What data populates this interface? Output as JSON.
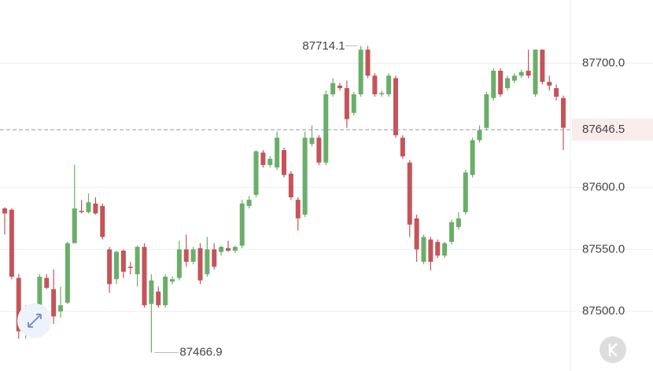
{
  "chart_data": {
    "type": "candlestick",
    "up_color": "#6aae6a",
    "down_color": "#c5545a",
    "open": [
      87583,
      87582,
      87527,
      87485,
      87496,
      87505,
      87527,
      87518,
      87500,
      87507,
      87555,
      87581,
      87580,
      87587,
      87585,
      87550,
      87526,
      87549,
      87536,
      87530,
      87552,
      87506,
      87516,
      87505,
      87524,
      87527,
      87550,
      87540,
      87551,
      87530,
      87550,
      87548,
      87551,
      87549,
      87553,
      87585,
      87594,
      87628,
      87618,
      87616,
      87630,
      87611,
      87590,
      87578,
      87635,
      87640,
      87620,
      87675,
      87682,
      87680,
      87660,
      87675,
      87711,
      87690,
      87675,
      87675,
      87688,
      87640,
      87620,
      87575,
      87540,
      87558,
      87556,
      87545,
      87556,
      87568,
      87580,
      87610,
      87638,
      87648,
      87672,
      87694,
      87680,
      87686,
      87690,
      87694,
      87675,
      87711,
      87685,
      87680,
      87672
    ],
    "high": [
      87584,
      87583,
      87530,
      87505,
      87505,
      87530,
      87530,
      87534,
      87520,
      87556,
      87618,
      87590,
      87595,
      87592,
      87587,
      87552,
      87549,
      87550,
      87540,
      87553,
      87555,
      87530,
      87520,
      87530,
      87528,
      87557,
      87562,
      87552,
      87555,
      87560,
      87555,
      87553,
      87557,
      87553,
      87590,
      87593,
      87630,
      87630,
      87625,
      87645,
      87632,
      87613,
      87592,
      87645,
      87650,
      87642,
      87678,
      87688,
      87684,
      87686,
      87677,
      87714,
      87714,
      87692,
      87678,
      87692,
      87690,
      87642,
      87622,
      87578,
      87562,
      87560,
      87558,
      87556,
      87574,
      87580,
      87614,
      87640,
      87650,
      87677,
      87696,
      87696,
      87690,
      87692,
      87695,
      87711,
      87711,
      87711,
      87690,
      87683,
      87674
    ],
    "low": [
      87562,
      87526,
      87478,
      87478,
      87490,
      87500,
      87518,
      87490,
      87495,
      87506,
      87555,
      87579,
      87579,
      87578,
      87558,
      87515,
      87522,
      87527,
      87530,
      87520,
      87503,
      87466.9,
      87503,
      87503,
      87522,
      87525,
      87536,
      87538,
      87522,
      87528,
      87534,
      87545,
      87548,
      87547,
      87551,
      87583,
      87592,
      87616,
      87616,
      87614,
      87608,
      87590,
      87565,
      87576,
      87633,
      87618,
      87618,
      87673,
      87678,
      87648,
      87658,
      87673,
      87688,
      87673,
      87673,
      87673,
      87640,
      87623,
      87560,
      87540,
      87538,
      87533,
      87543,
      87543,
      87554,
      87566,
      87578,
      87608,
      87636,
      87646,
      87670,
      87673,
      87678,
      87684,
      87688,
      87688,
      87673,
      87683,
      87678,
      87670,
      87630
    ],
    "close": [
      87579,
      87528,
      87484,
      87493,
      87505,
      87528,
      87519,
      87496,
      87505,
      87555,
      87583,
      87580,
      87588,
      87579,
      87560,
      87522,
      87548,
      87532,
      87535,
      87552,
      87505,
      87525,
      87505,
      87528,
      87526,
      87550,
      87540,
      87550,
      87525,
      87550,
      87536,
      87552,
      87549,
      87552,
      87587,
      87590,
      87629,
      87618,
      87623,
      87640,
      87610,
      87592,
      87575,
      87640,
      87640,
      87620,
      87675,
      87684,
      87680,
      87655,
      87675,
      87711,
      87690,
      87675,
      87676,
      87690,
      87642,
      87625,
      87570,
      87550,
      87560,
      87540,
      87545,
      87555,
      87572,
      87575,
      87612,
      87638,
      87646,
      87675,
      87694,
      87675,
      87688,
      87690,
      87693,
      87690,
      87711,
      87685,
      87682,
      87673,
      87648
    ],
    "ylim": [
      87452,
      87751
    ],
    "yticks": [
      {
        "value": 87500,
        "label": "87500.0"
      },
      {
        "value": 87550,
        "label": "87550.0"
      },
      {
        "value": 87600,
        "label": "87600.0"
      },
      {
        "value": 87700,
        "label": "87700.0"
      }
    ],
    "grid": true,
    "max_label": 87714.1,
    "min_label": 87466.9,
    "current_price": 87646.5
  }
}
